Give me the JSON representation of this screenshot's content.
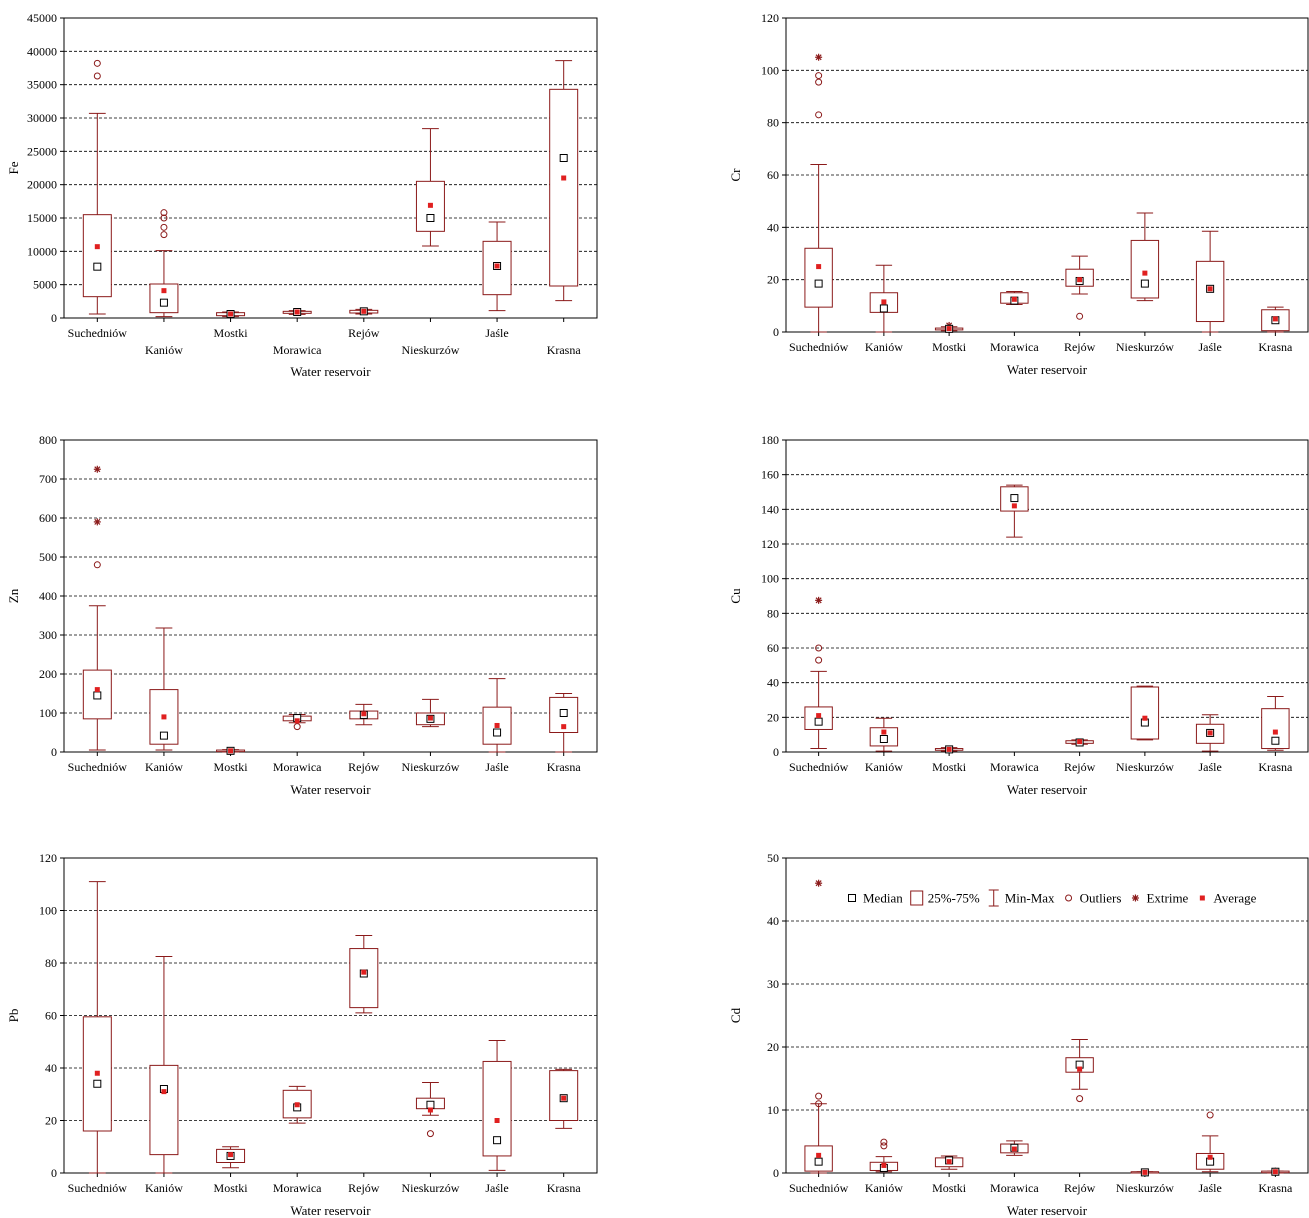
{
  "colors": {
    "box": "#8b1a1a",
    "average": "#e02020",
    "grid": "#000000",
    "axis": "#000000"
  },
  "legend": {
    "items": [
      {
        "label": "Median",
        "symbol": "median"
      },
      {
        "label": "25%-75%",
        "symbol": "box"
      },
      {
        "label": "Min-Max",
        "symbol": "whisker"
      },
      {
        "label": "Outliers",
        "symbol": "outlier"
      },
      {
        "label": "Extrime",
        "symbol": "extreme"
      },
      {
        "label": "Average",
        "symbol": "average"
      }
    ]
  },
  "chart_data": [
    {
      "type": "box",
      "ylabel": "Fe",
      "xlabel": "Water reservoir",
      "ylim": [
        0,
        45000
      ],
      "yticks": [
        0,
        5000,
        10000,
        15000,
        20000,
        25000,
        30000,
        35000,
        40000,
        45000
      ],
      "grid": true,
      "staggered_labels": true,
      "categories": [
        "Suchedniów",
        "Kaniów",
        "Mostki",
        "Morawica",
        "Rejów",
        "Nieskurzów",
        "Jaśle",
        "Krasna"
      ],
      "stats": [
        {
          "min": 600,
          "q1": 3200,
          "median": 7700,
          "q3": 15500,
          "max": 30700,
          "average": 10700,
          "outliers": [
            36300,
            38200
          ],
          "extremes": []
        },
        {
          "min": 200,
          "q1": 800,
          "median": 2300,
          "q3": 5100,
          "max": 10100,
          "average": 4100,
          "outliers": [
            12500,
            13600,
            15000,
            15800
          ],
          "extremes": []
        },
        {
          "min": 200,
          "q1": 350,
          "median": 600,
          "q3": 800,
          "max": 900,
          "average": 600,
          "outliers": [],
          "extremes": []
        },
        {
          "min": 550,
          "q1": 700,
          "median": 900,
          "q3": 1000,
          "max": 1100,
          "average": 900,
          "outliers": [],
          "extremes": []
        },
        {
          "min": 600,
          "q1": 750,
          "median": 1000,
          "q3": 1150,
          "max": 1300,
          "average": 1000,
          "outliers": [],
          "extremes": []
        },
        {
          "min": 10800,
          "q1": 13000,
          "median": 15000,
          "q3": 20500,
          "max": 28400,
          "average": 16900,
          "outliers": [],
          "extremes": []
        },
        {
          "min": 1100,
          "q1": 3500,
          "median": 7800,
          "q3": 11500,
          "max": 14400,
          "average": 7800,
          "outliers": [],
          "extremes": []
        },
        {
          "min": 2600,
          "q1": 4800,
          "median": 24000,
          "q3": 34300,
          "max": 38600,
          "average": 21000,
          "outliers": [],
          "extremes": []
        }
      ]
    },
    {
      "type": "box",
      "ylabel": "Cr",
      "xlabel": "Water reservoir",
      "ylim": [
        0,
        120
      ],
      "yticks": [
        0,
        20,
        40,
        60,
        80,
        100,
        120
      ],
      "grid": true,
      "staggered_labels": false,
      "categories": [
        "Suchedniów",
        "Kaniów",
        "Mostki",
        "Morawica",
        "Rejów",
        "Nieskurzów",
        "Jaśle",
        "Krasna"
      ],
      "stats": [
        {
          "min": 0,
          "q1": 9.5,
          "median": 18.5,
          "q3": 32,
          "max": 64,
          "average": 25,
          "outliers": [
            83,
            95.5,
            98
          ],
          "extremes": [
            105
          ]
        },
        {
          "min": 0,
          "q1": 7.5,
          "median": 9,
          "q3": 15,
          "max": 25.5,
          "average": 11.5,
          "outliers": [],
          "extremes": []
        },
        {
          "min": 0.5,
          "q1": 0.8,
          "median": 1.2,
          "q3": 1.5,
          "max": 2,
          "average": 1.3,
          "outliers": [],
          "extremes": [
            2.5
          ]
        },
        {
          "min": 10.5,
          "q1": 11,
          "median": 12,
          "q3": 15,
          "max": 15.5,
          "average": 12.5,
          "outliers": [],
          "extremes": []
        },
        {
          "min": 14.5,
          "q1": 17.5,
          "median": 19.5,
          "q3": 24,
          "max": 29,
          "average": 20,
          "outliers": [
            6
          ],
          "extremes": []
        },
        {
          "min": 12,
          "q1": 13,
          "median": 18.5,
          "q3": 35,
          "max": 45.5,
          "average": 22.5,
          "outliers": [],
          "extremes": []
        },
        {
          "min": 0,
          "q1": 4,
          "median": 16.5,
          "q3": 27,
          "max": 38.5,
          "average": 16.5,
          "outliers": [],
          "extremes": []
        },
        {
          "min": 0,
          "q1": 0.5,
          "median": 4.5,
          "q3": 8.5,
          "max": 9.5,
          "average": 5,
          "outliers": [],
          "extremes": []
        }
      ]
    },
    {
      "type": "box",
      "ylabel": "Zn",
      "xlabel": "Water reservoir",
      "ylim": [
        0,
        800
      ],
      "yticks": [
        0,
        100,
        200,
        300,
        400,
        500,
        600,
        700,
        800
      ],
      "grid": true,
      "staggered_labels": false,
      "categories": [
        "Suchedniów",
        "Kaniów",
        "Mostki",
        "Morawica",
        "Rejów",
        "Nieskurzów",
        "Jaśle",
        "Krasna"
      ],
      "stats": [
        {
          "min": 5,
          "q1": 85,
          "median": 145,
          "q3": 210,
          "max": 375,
          "average": 160,
          "outliers": [
            480
          ],
          "extremes": [
            590,
            725
          ]
        },
        {
          "min": 5,
          "q1": 20,
          "median": 42,
          "q3": 160,
          "max": 318,
          "average": 90,
          "outliers": [],
          "extremes": []
        },
        {
          "min": 0,
          "q1": 1,
          "median": 3,
          "q3": 5,
          "max": 6,
          "average": 3,
          "outliers": [],
          "extremes": []
        },
        {
          "min": 75,
          "q1": 80,
          "median": 87,
          "q3": 92,
          "max": 96,
          "average": 80,
          "outliers": [
            65
          ],
          "extremes": []
        },
        {
          "min": 70,
          "q1": 85,
          "median": 95,
          "q3": 105,
          "max": 122,
          "average": 98,
          "outliers": [],
          "extremes": []
        },
        {
          "min": 65,
          "q1": 70,
          "median": 85,
          "q3": 100,
          "max": 135,
          "average": 87,
          "outliers": [],
          "extremes": []
        },
        {
          "min": 0,
          "q1": 20,
          "median": 50,
          "q3": 115,
          "max": 188,
          "average": 68,
          "outliers": [],
          "extremes": []
        },
        {
          "min": 0,
          "q1": 50,
          "median": 100,
          "q3": 140,
          "max": 150,
          "average": 65,
          "outliers": [],
          "extremes": []
        }
      ]
    },
    {
      "type": "box",
      "ylabel": "Cu",
      "xlabel": "Water reservoir",
      "ylim": [
        0,
        180
      ],
      "yticks": [
        0,
        20,
        40,
        60,
        80,
        100,
        120,
        140,
        160,
        180
      ],
      "grid": true,
      "staggered_labels": false,
      "categories": [
        "Suchedniów",
        "Kaniów",
        "Mostki",
        "Morawica",
        "Rejów",
        "Nieskurzów",
        "Jaśle",
        "Krasna"
      ],
      "stats": [
        {
          "min": 2,
          "q1": 13,
          "median": 17.5,
          "q3": 26,
          "max": 46.5,
          "average": 21,
          "outliers": [
            53,
            60
          ],
          "extremes": [
            87.5
          ]
        },
        {
          "min": 0.5,
          "q1": 3.5,
          "median": 7.5,
          "q3": 14,
          "max": 19.5,
          "average": 11.5,
          "outliers": [],
          "extremes": []
        },
        {
          "min": 0.5,
          "q1": 1,
          "median": 1.5,
          "q3": 2,
          "max": 2.5,
          "average": 1.5,
          "outliers": [],
          "extremes": []
        },
        {
          "min": 124,
          "q1": 139,
          "median": 146.5,
          "q3": 153,
          "max": 154,
          "average": 142,
          "outliers": [],
          "extremes": []
        },
        {
          "min": 4.5,
          "q1": 5,
          "median": 5.5,
          "q3": 6.5,
          "max": 7,
          "average": 6,
          "outliers": [],
          "extremes": []
        },
        {
          "min": 7,
          "q1": 7.5,
          "median": 17,
          "q3": 37.5,
          "max": 38,
          "average": 19.5,
          "outliers": [],
          "extremes": []
        },
        {
          "min": 0.5,
          "q1": 5,
          "median": 11,
          "q3": 16,
          "max": 21.5,
          "average": 11,
          "outliers": [],
          "extremes": []
        },
        {
          "min": 1,
          "q1": 2,
          "median": 6.5,
          "q3": 25,
          "max": 32,
          "average": 11.5,
          "outliers": [],
          "extremes": []
        }
      ]
    },
    {
      "type": "box",
      "ylabel": "Pb",
      "xlabel": "Water reservoir",
      "ylim": [
        0,
        120
      ],
      "yticks": [
        0,
        20,
        40,
        60,
        80,
        100,
        120
      ],
      "grid": true,
      "staggered_labels": false,
      "categories": [
        "Suchedniów",
        "Kaniów",
        "Mostki",
        "Morawica",
        "Rejów",
        "Nieskurzów",
        "Jaśle",
        "Krasna"
      ],
      "stats": [
        {
          "min": 0,
          "q1": 16,
          "median": 34,
          "q3": 59.5,
          "max": 111,
          "average": 38,
          "outliers": [],
          "extremes": []
        },
        {
          "min": 0,
          "q1": 7,
          "median": 32,
          "q3": 41,
          "max": 82.5,
          "average": 31,
          "outliers": [],
          "extremes": []
        },
        {
          "min": 2,
          "q1": 4,
          "median": 6.5,
          "q3": 9,
          "max": 10,
          "average": 7,
          "outliers": [],
          "extremes": []
        },
        {
          "min": 19,
          "q1": 21,
          "median": 25,
          "q3": 31.5,
          "max": 33,
          "average": 26,
          "outliers": [],
          "extremes": []
        },
        {
          "min": 61,
          "q1": 63,
          "median": 76,
          "q3": 85.5,
          "max": 90.5,
          "average": 76.5,
          "outliers": [],
          "extremes": []
        },
        {
          "min": 22,
          "q1": 24.5,
          "median": 26,
          "q3": 28.5,
          "max": 34.5,
          "average": 24,
          "outliers": [
            15
          ],
          "extremes": []
        },
        {
          "min": 1,
          "q1": 6.5,
          "median": 12.5,
          "q3": 42.5,
          "max": 50.5,
          "average": 20,
          "outliers": [],
          "extremes": []
        },
        {
          "min": 17,
          "q1": 20,
          "median": 28.5,
          "q3": 39,
          "max": 39.5,
          "average": 28.5,
          "outliers": [],
          "extremes": []
        }
      ]
    },
    {
      "type": "box",
      "ylabel": "Cd",
      "xlabel": "Water reservoir",
      "ylim": [
        0,
        50
      ],
      "yticks": [
        0,
        10,
        20,
        30,
        40,
        50
      ],
      "grid": true,
      "staggered_labels": false,
      "legend": "top",
      "categories": [
        "Suchedniów",
        "Kaniów",
        "Mostki",
        "Morawica",
        "Rejów",
        "Nieskurzów",
        "Jaśle",
        "Krasna"
      ],
      "stats": [
        {
          "min": 0,
          "q1": 0.3,
          "median": 1.8,
          "q3": 4.3,
          "max": 11,
          "average": 2.8,
          "outliers": [
            11,
            12.2
          ],
          "extremes": [
            46
          ]
        },
        {
          "min": 0.2,
          "q1": 0.4,
          "median": 0.8,
          "q3": 1.7,
          "max": 2.6,
          "average": 1.2,
          "outliers": [
            4.3,
            4.9
          ],
          "extremes": []
        },
        {
          "min": 0.6,
          "q1": 1,
          "median": 2,
          "q3": 2.4,
          "max": 2.7,
          "average": 1.8,
          "outliers": [],
          "extremes": []
        },
        {
          "min": 2.8,
          "q1": 3.2,
          "median": 4,
          "q3": 4.6,
          "max": 5.1,
          "average": 3.8,
          "outliers": [],
          "extremes": []
        },
        {
          "min": 13.3,
          "q1": 16,
          "median": 17.2,
          "q3": 18.3,
          "max": 21.2,
          "average": 16.5,
          "outliers": [
            11.8
          ],
          "extremes": []
        },
        {
          "min": 0,
          "q1": 0,
          "median": 0.1,
          "q3": 0.2,
          "max": 0.2,
          "average": 0.1,
          "outliers": [],
          "extremes": []
        },
        {
          "min": 0.2,
          "q1": 0.6,
          "median": 1.8,
          "q3": 3.1,
          "max": 5.9,
          "average": 2.5,
          "outliers": [
            9.2
          ],
          "extremes": []
        },
        {
          "min": 0,
          "q1": 0.05,
          "median": 0.2,
          "q3": 0.3,
          "max": 0.3,
          "average": 0.2,
          "outliers": [],
          "extremes": [
            0.3
          ]
        }
      ]
    }
  ]
}
